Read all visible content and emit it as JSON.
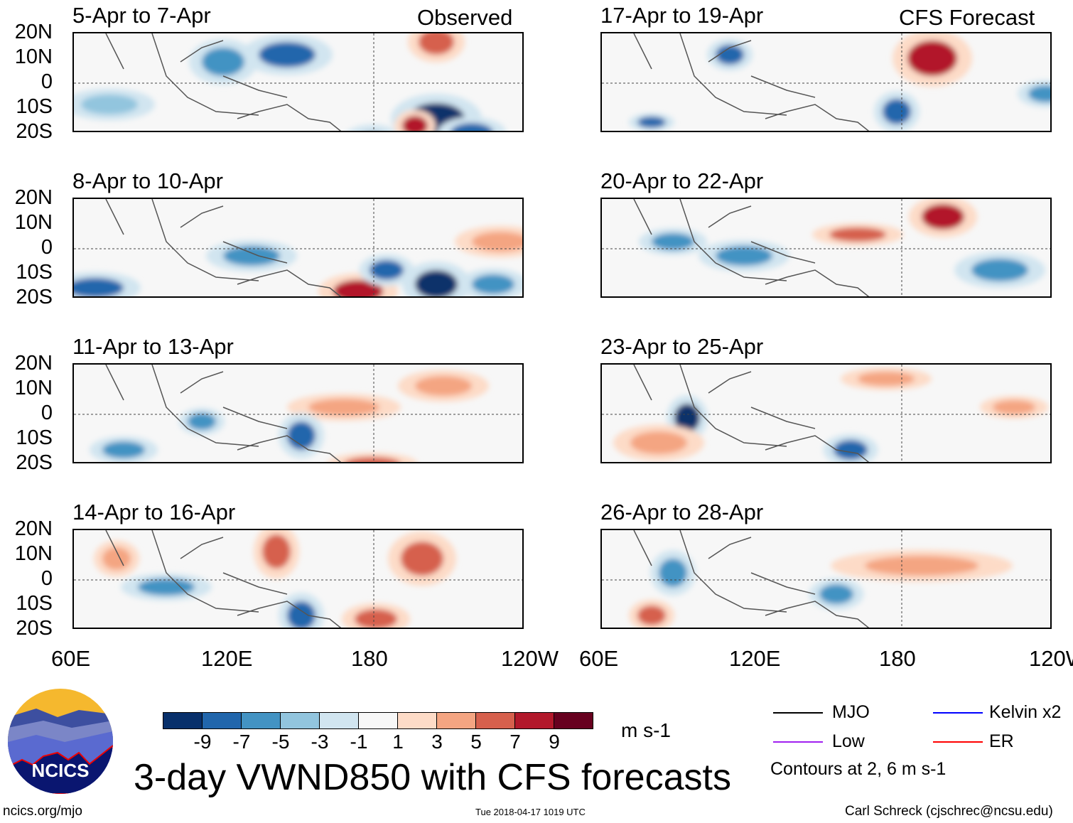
{
  "headers": {
    "observed": "Observed",
    "forecast": "CFS Forecast"
  },
  "panels": [
    {
      "title": "5-Apr to 7-Apr"
    },
    {
      "title": "8-Apr to 10-Apr"
    },
    {
      "title": "11-Apr to 13-Apr"
    },
    {
      "title": "14-Apr to 16-Apr"
    },
    {
      "title": "17-Apr to 19-Apr"
    },
    {
      "title": "20-Apr to 22-Apr"
    },
    {
      "title": "23-Apr to 25-Apr"
    },
    {
      "title": "26-Apr to 28-Apr"
    }
  ],
  "lat_labels": [
    "20N",
    "10N",
    "0",
    "10S",
    "20S"
  ],
  "lon_labels": [
    "60E",
    "120E",
    "180",
    "120W"
  ],
  "colorbar": {
    "colors": [
      "#08306b",
      "#2166ac",
      "#4393c3",
      "#92c5de",
      "#d1e5f0",
      "#f7f7f7",
      "#fddbc7",
      "#f4a582",
      "#d6604d",
      "#b2182b",
      "#67001f"
    ],
    "labels": [
      "-9",
      "-7",
      "-5",
      "-3",
      "-1",
      "1",
      "3",
      "5",
      "7",
      "9"
    ],
    "units": "m s-1"
  },
  "title": "3-day VWND850 with CFS forecasts",
  "legend": {
    "items": [
      {
        "label": "MJO",
        "color": "#000000"
      },
      {
        "label": "Kelvin x2",
        "color": "#0000ff"
      },
      {
        "label": "Low",
        "color": "#a020f0"
      },
      {
        "label": "ER",
        "color": "#ff0000"
      }
    ],
    "note": "Contours at 2, 6 m s-1"
  },
  "logo_text": "NCICS",
  "footer": {
    "url": "ncics.org/mjo",
    "timestamp": "Tue 2018-04-17 1019 UTC",
    "credit": "Carl Schreck (cjschrec@ncsu.edu)"
  }
}
